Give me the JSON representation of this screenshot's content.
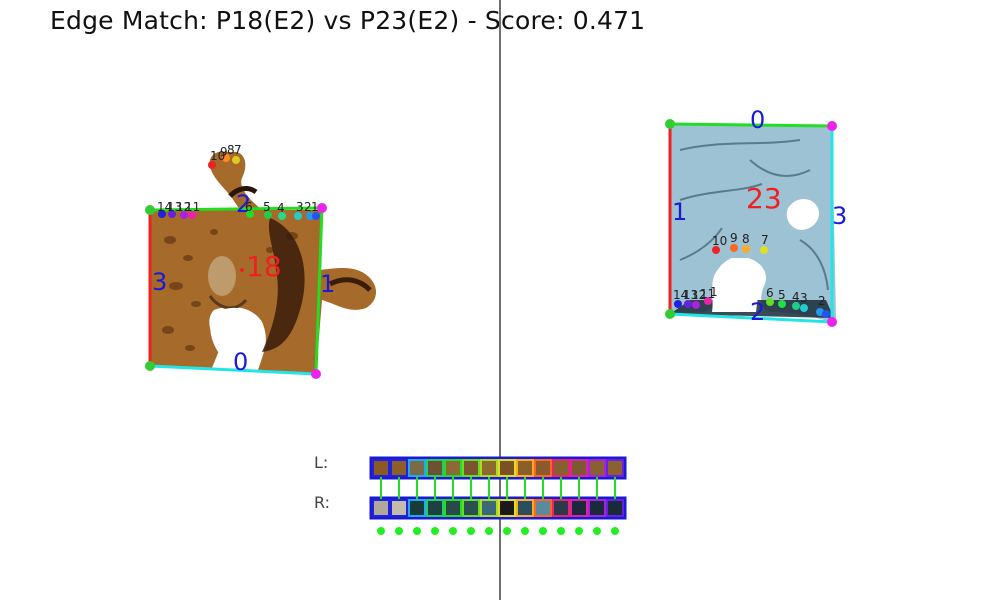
{
  "title": "Edge Match: P18(E2) vs P23(E2) - Score: 0.471",
  "colors": {
    "edge_green": "#22dd22",
    "edge_cyan": "#22e6e6",
    "edge_red": "#ee2020",
    "corner_magenta": "#ee22ee",
    "corner_green": "#33cc33",
    "edge_number": "#1a1ad6",
    "piece_number": "#ee2020",
    "divider": "#6e6e6e",
    "strip_border": "#1a1ad6"
  },
  "left_piece": {
    "id": "18",
    "edge_labels": [
      "0",
      "1",
      "2",
      "3"
    ],
    "point_labels": [
      "1",
      "2",
      "3",
      "4",
      "5",
      "6",
      "7",
      "8",
      "9",
      "10",
      "11",
      "12",
      "13",
      "14"
    ]
  },
  "right_piece": {
    "id": "23",
    "edge_labels": [
      "0",
      "1",
      "2",
      "3"
    ],
    "point_labels": [
      "1",
      "2",
      "3",
      "4",
      "5",
      "6",
      "7",
      "8",
      "9",
      "10",
      "11",
      "12",
      "13",
      "14"
    ]
  },
  "strip": {
    "left_label": "L:",
    "right_label": "R:",
    "left_colors": [
      "#8b5a22",
      "#8e5e28",
      "#7a6b45",
      "#6b5232",
      "#8c6a36",
      "#7a5530",
      "#8e6a2e",
      "#7c5024",
      "#8a6028",
      "#8b5a2a",
      "#856030",
      "#7c5a30",
      "#8b6030",
      "#8c6030"
    ],
    "right_colors": [
      "#b0a898",
      "#c4bcaa",
      "#1a3a3a",
      "#1e4040",
      "#2a4a4a",
      "#2a5050",
      "#3a6a7a",
      "#1a1a1a",
      "#2a4e5e",
      "#5a8aa0",
      "#2a3a4a",
      "#1a2a3a",
      "#1a2a3a",
      "#1a2a3a"
    ],
    "border_colors": [
      "#2222dd",
      "#2222dd",
      "#22aaee",
      "#22cc66",
      "#22dd22",
      "#66dd22",
      "#aadd22",
      "#dddd22",
      "#ffaa22",
      "#ff6622",
      "#ee2266",
      "#dd22aa",
      "#aa22dd",
      "#6622dd"
    ],
    "match_line_color": "#22dd22",
    "match_dot_color": "#22ee22"
  }
}
